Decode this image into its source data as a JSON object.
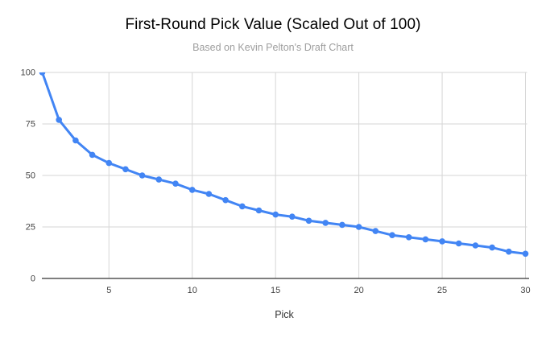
{
  "chart_data": {
    "type": "line",
    "title": "First-Round Pick Value (Scaled Out of 100)",
    "subtitle": "Based on Kevin Pelton's Draft Chart",
    "xlabel": "Pick",
    "ylabel": "",
    "x": [
      1,
      2,
      3,
      4,
      5,
      6,
      7,
      8,
      9,
      10,
      11,
      12,
      13,
      14,
      15,
      16,
      17,
      18,
      19,
      20,
      21,
      22,
      23,
      24,
      25,
      26,
      27,
      28,
      29,
      30
    ],
    "series": [
      {
        "name": "Pick Value",
        "values": [
          100,
          77,
          67,
          60,
          56,
          53,
          50,
          48,
          46,
          43,
          41,
          38,
          35,
          33,
          31,
          30,
          28,
          27,
          26,
          25,
          23,
          21,
          20,
          19,
          18,
          17,
          16,
          15,
          13,
          12
        ]
      }
    ],
    "xlim": [
      1,
      30
    ],
    "ylim": [
      0,
      100
    ],
    "x_ticks": [
      5,
      10,
      15,
      20,
      25,
      30
    ],
    "y_ticks": [
      0,
      25,
      50,
      75,
      100
    ],
    "grid": true,
    "legend": "none",
    "colors": {
      "line": "#4285f4",
      "marker": "#4285f4",
      "gridline": "#d6d6d6",
      "axis_line": "#333333",
      "tick_label": "#444444",
      "title": "#000000",
      "subtitle": "#9e9e9e"
    }
  }
}
